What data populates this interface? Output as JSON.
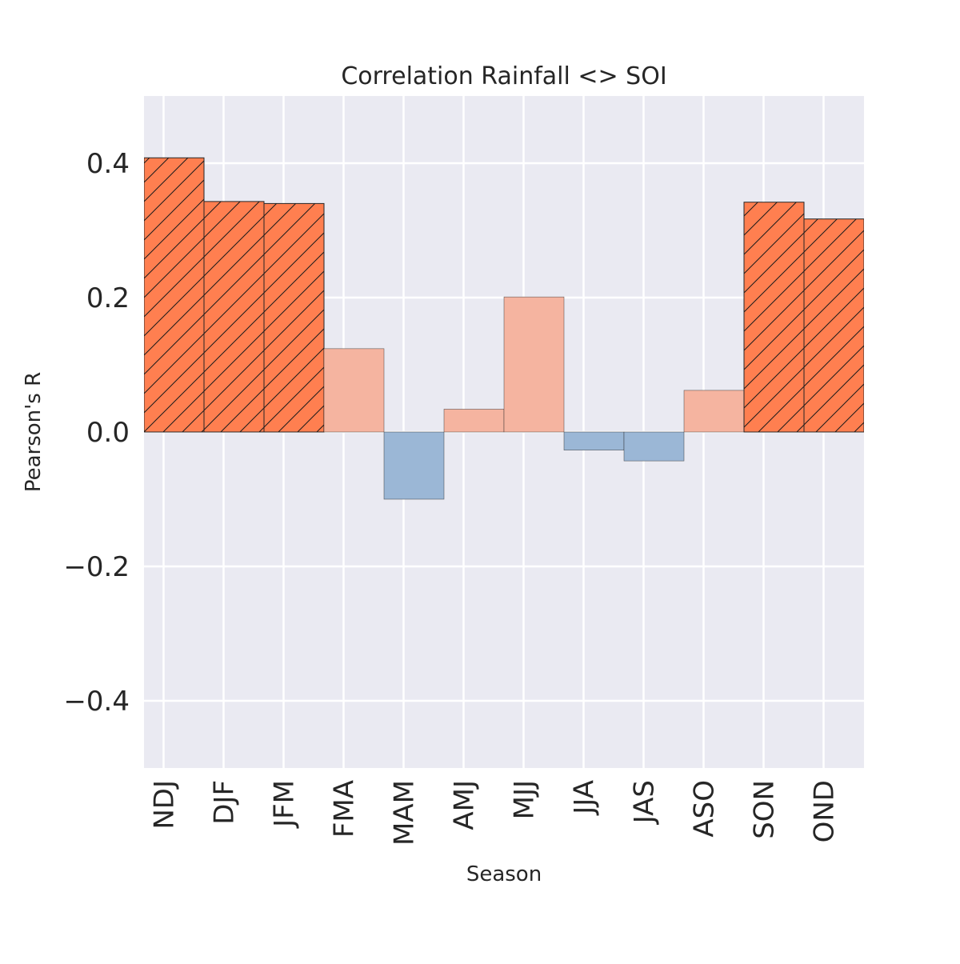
{
  "chart_data": {
    "type": "bar",
    "title": "Correlation Rainfall <> SOI",
    "xlabel": "Season",
    "ylabel": "Pearson's R",
    "ylim": [
      -0.5,
      0.5
    ],
    "yticks": [
      -0.4,
      -0.2,
      0.0,
      0.2,
      0.4
    ],
    "ytick_labels": [
      "−0.4",
      "−0.2",
      "0.0",
      "0.2",
      "0.4"
    ],
    "grid": true,
    "categories": [
      "NDJ",
      "DJF",
      "JFM",
      "FMA",
      "MAM",
      "AMJ",
      "MJJ",
      "JJA",
      "JAS",
      "ASO",
      "SON",
      "OND"
    ],
    "values": [
      0.408,
      0.343,
      0.34,
      0.124,
      -0.1,
      0.034,
      0.201,
      -0.027,
      -0.043,
      0.062,
      0.342,
      0.317
    ],
    "significant": [
      true,
      true,
      true,
      false,
      false,
      false,
      false,
      false,
      false,
      false,
      true,
      true
    ],
    "colors": {
      "significant_positive": "#ff7f50",
      "positive": "#f5b4a0",
      "negative": "#9bb7d6",
      "plot_background": "#eaeaf2",
      "grid": "#ffffff",
      "edge": "#262626"
    }
  }
}
